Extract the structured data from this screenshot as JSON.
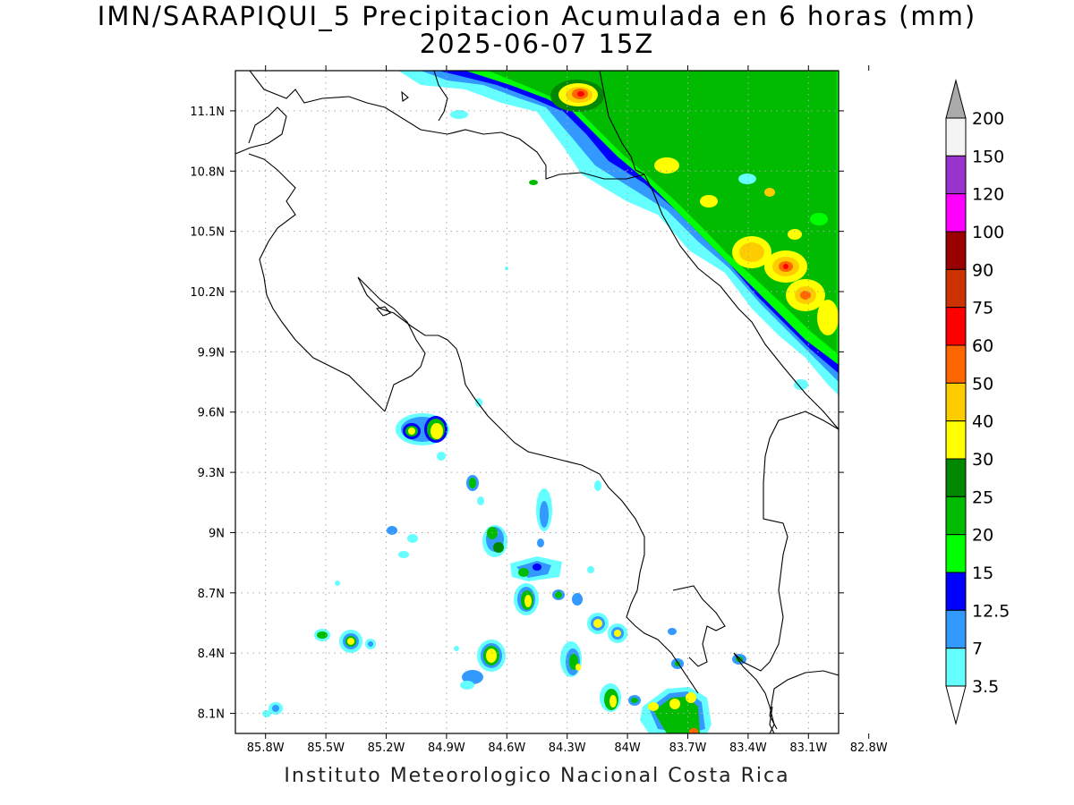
{
  "title_line1": "IMN/SARAPIQUI_5 Precipitacion Acumulada en 6 horas (mm)",
  "title_line2": "2025-06-07 15Z",
  "footer": "Instituto Meteorologico Nacional Costa Rica",
  "lon_ticks": [
    "85.8W",
    "85.5W",
    "85.2W",
    "84.9W",
    "84.6W",
    "84.3W",
    "84W",
    "83.7W",
    "83.4W",
    "83.1W",
    "82.8W"
  ],
  "lat_ticks": [
    "11.1N",
    "10.8N",
    "10.5N",
    "10.2N",
    "9.9N",
    "9.6N",
    "9.3N",
    "9N",
    "8.7N",
    "8.4N",
    "8.1N"
  ],
  "colorbar": {
    "labels": [
      "200",
      "150",
      "120",
      "100",
      "90",
      "75",
      "60",
      "50",
      "40",
      "30",
      "25",
      "20",
      "15",
      "12.5",
      "7",
      "3.5"
    ],
    "colors": [
      "#f4f4f4",
      "#9933cc",
      "#ff00ff",
      "#990000",
      "#cc3300",
      "#ff0000",
      "#ff6600",
      "#ffcc00",
      "#ffff00",
      "#008800",
      "#00bb00",
      "#00ff00",
      "#0000ff",
      "#3399ff",
      "#66ffff"
    ],
    "top_triangle_color": "#aaaaaa",
    "bottom_triangle_color": "#ffffff"
  },
  "map_extent": {
    "lon": [
      -85.95,
      -82.95
    ],
    "lat": [
      8.0,
      11.3
    ]
  },
  "lon_values": [
    -85.8,
    -85.5,
    -85.2,
    -84.9,
    -84.6,
    -84.3,
    -84.0,
    -83.7,
    -83.4,
    -83.1,
    -82.8
  ],
  "lat_values": [
    11.1,
    10.8,
    10.5,
    10.2,
    9.9,
    9.6,
    9.3,
    9.0,
    8.7,
    8.4,
    8.1
  ]
}
